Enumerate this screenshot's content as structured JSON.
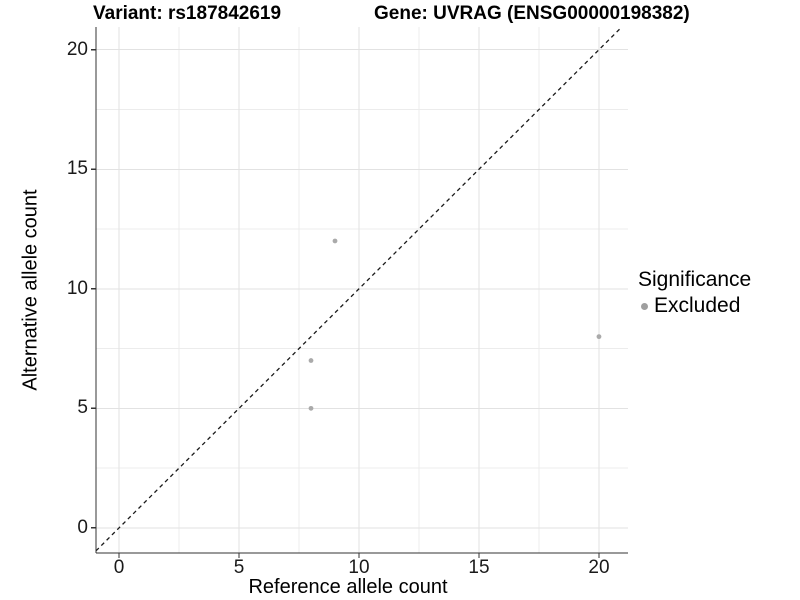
{
  "chart_data": {
    "type": "scatter",
    "titles": {
      "variant": "Variant: rs187842619",
      "gene": "Gene: UVRAG (ENSG00000198382)"
    },
    "xlabel": "Reference allele count",
    "ylabel": "Alternative allele count",
    "xlim": [
      -0.96,
      21.21
    ],
    "ylim": [
      -1.05,
      20.95
    ],
    "x_ticks": [
      0,
      5,
      10,
      15,
      20
    ],
    "y_ticks": [
      0,
      5,
      10,
      15,
      20
    ],
    "x_minor_ticks": [
      2.5,
      7.5,
      12.5,
      17.5
    ],
    "y_minor_ticks": [
      2.5,
      7.5,
      12.5,
      17.5
    ],
    "grid": "major+minor",
    "grid_major_color": "#e2e2e2",
    "grid_minor_color": "#ececec",
    "axis_line_color": "#333333",
    "series": [
      {
        "name": "Excluded",
        "color": "#aaaaaa",
        "points": [
          {
            "x": 8,
            "y": 5
          },
          {
            "x": 8,
            "y": 7
          },
          {
            "x": 9,
            "y": 12
          },
          {
            "x": 20,
            "y": 8
          }
        ]
      }
    ],
    "reference_line": {
      "type": "identity",
      "style": "dashed",
      "color": "#1a1a1a"
    },
    "legend": {
      "title": "Significance",
      "position": "right"
    }
  }
}
